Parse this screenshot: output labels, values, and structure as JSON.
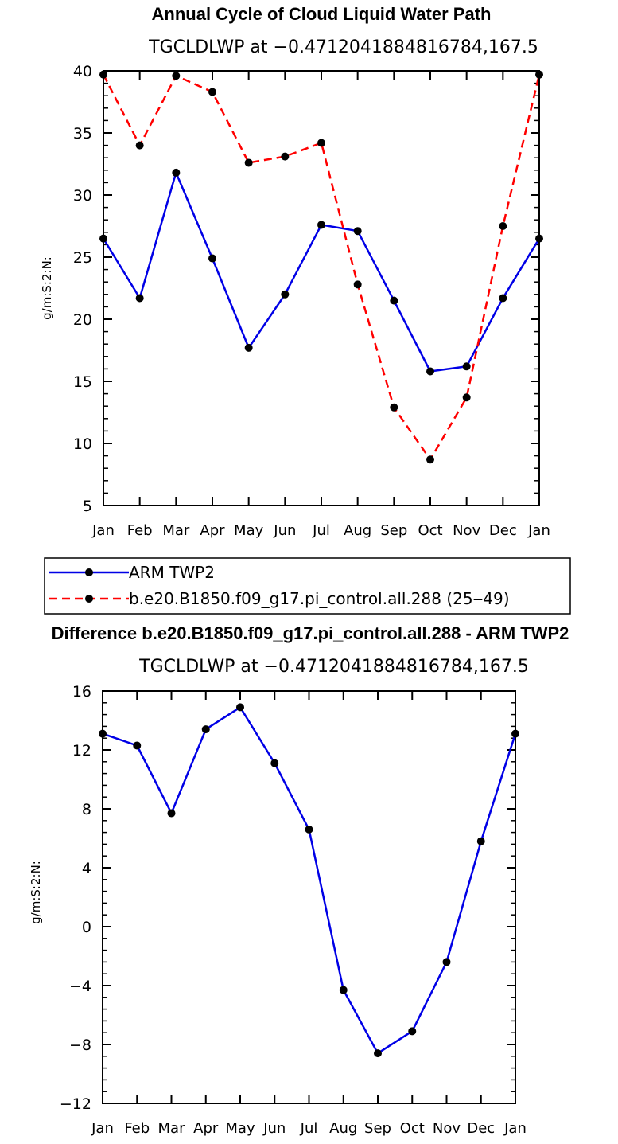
{
  "chart_data": [
    {
      "type": "line",
      "title": "Annual Cycle of Cloud Liquid Water Path",
      "subtitle": "TGCLDLWP at −0.4712041884816784,167.5",
      "ylabel": "g/m:S:2:N:",
      "xlabel": "",
      "categories": [
        "Jan",
        "Feb",
        "Mar",
        "Apr",
        "May",
        "Jun",
        "Jul",
        "Aug",
        "Sep",
        "Oct",
        "Nov",
        "Dec",
        "Jan"
      ],
      "ylim": [
        5,
        40
      ],
      "yticks": [
        5,
        10,
        15,
        20,
        25,
        30,
        35,
        40
      ],
      "series": [
        {
          "name": "ARM TWP2",
          "color": "#0000e6",
          "style": "solid",
          "values": [
            26.5,
            21.7,
            31.8,
            24.9,
            17.7,
            22.0,
            27.6,
            27.1,
            21.5,
            15.8,
            16.2,
            21.7,
            26.5
          ]
        },
        {
          "name": "b.e20.B1850.f09_g17.pi_control.all.288 (25‒49)",
          "color": "#ff0000",
          "style": "dashed",
          "values": [
            39.7,
            34.0,
            39.6,
            38.3,
            32.6,
            33.1,
            34.2,
            22.8,
            12.9,
            8.7,
            13.7,
            27.5,
            39.7
          ]
        }
      ],
      "legend": {
        "placement": "below-left"
      }
    },
    {
      "type": "line",
      "title": "Difference b.e20.B1850.f09_g17.pi_control.all.288 - ARM TWP2",
      "subtitle": "TGCLDLWP at −0.4712041884816784,167.5",
      "ylabel": "g/m:S:2:N:",
      "xlabel": "",
      "categories": [
        "Jan",
        "Feb",
        "Mar",
        "Apr",
        "May",
        "Jun",
        "Jul",
        "Aug",
        "Sep",
        "Oct",
        "Nov",
        "Dec",
        "Jan"
      ],
      "ylim": [
        -12,
        16
      ],
      "yticks": [
        -12,
        -8,
        -4,
        0,
        4,
        8,
        12,
        16
      ],
      "ytick_labels": [
        "−12",
        "−8",
        "−4",
        "0",
        "4",
        "8",
        "12",
        "16"
      ],
      "series": [
        {
          "name": "Difference",
          "color": "#0000e6",
          "style": "solid",
          "values": [
            13.1,
            12.3,
            7.7,
            13.4,
            14.9,
            11.1,
            6.6,
            -4.3,
            -8.6,
            -7.1,
            -2.4,
            5.8,
            13.1
          ]
        }
      ]
    }
  ]
}
